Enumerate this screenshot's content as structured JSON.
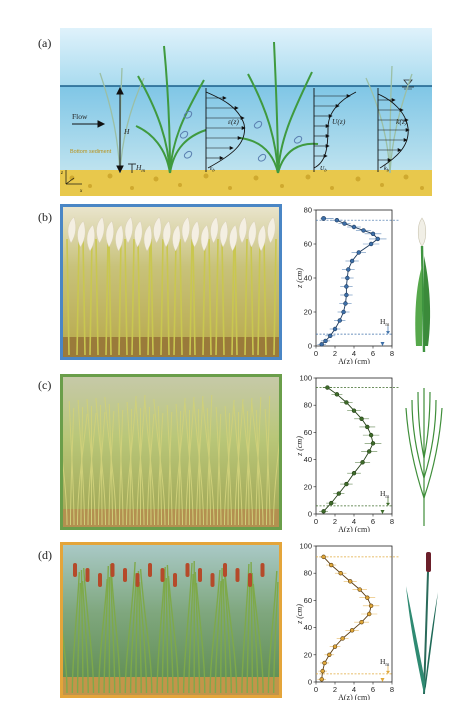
{
  "panel_labels": [
    "(a)",
    "(b)",
    "(c)",
    "(d)"
  ],
  "schematic": {
    "flow_label": "Flow",
    "depth_label": "H",
    "canopy_label": "H",
    "canopy_sub": "m",
    "bottom_text": "Bottom sediment",
    "axes": [
      "z",
      "x"
    ],
    "labels": [
      "ε(z)",
      "U(z)",
      "k(z)"
    ],
    "near_bed": [
      "ε",
      "U",
      "k"
    ],
    "near_bed_sub": [
      "b",
      "b",
      "b"
    ]
  },
  "colors": {
    "b": "#3d6fa8",
    "c": "#3e6b2a",
    "d": "#e0a83a",
    "dark_b": "#1d3a5e",
    "dark_c": "#244016",
    "dark_d": "#5a3b0e"
  },
  "chart_data": [
    {
      "type": "scatter",
      "panel": "b",
      "xlabel": "A(z) (cm)",
      "ylabel": "z (cm)",
      "xlim": [
        0,
        8
      ],
      "ylim": [
        0,
        80
      ],
      "xticks": [
        "0",
        "2",
        "4",
        "6",
        "8"
      ],
      "yticks": [
        "0",
        "20",
        "40",
        "60",
        "80"
      ],
      "hm_label": "H",
      "hm_sub": "m",
      "hm": 7,
      "top_point": {
        "x": 0.8,
        "y": 75
      },
      "profile": [
        [
          0.6,
          1
        ],
        [
          1.0,
          3
        ],
        [
          1.5,
          6
        ],
        [
          2.0,
          10
        ],
        [
          2.5,
          15
        ],
        [
          2.9,
          20
        ],
        [
          3.1,
          25
        ],
        [
          3.2,
          30
        ],
        [
          3.2,
          35
        ],
        [
          3.3,
          40
        ],
        [
          3.4,
          45
        ],
        [
          3.8,
          50
        ],
        [
          4.5,
          55
        ],
        [
          5.8,
          60
        ],
        [
          6.5,
          63
        ],
        [
          6.0,
          66
        ],
        [
          5.0,
          68
        ],
        [
          4.0,
          70
        ],
        [
          3.0,
          72
        ],
        [
          2.2,
          74
        ]
      ]
    },
    {
      "type": "scatter",
      "panel": "c",
      "xlabel": "A(z) (cm)",
      "ylabel": "z (cm)",
      "xlim": [
        0,
        8
      ],
      "ylim": [
        0,
        100
      ],
      "xticks": [
        "0",
        "2",
        "4",
        "6",
        "8"
      ],
      "yticks": [
        "0",
        "20",
        "40",
        "60",
        "80",
        "100"
      ],
      "hm_label": "H",
      "hm_sub": "m",
      "hm": 6,
      "profile": [
        [
          0.8,
          2
        ],
        [
          1.6,
          8
        ],
        [
          2.4,
          15
        ],
        [
          3.2,
          22
        ],
        [
          4.0,
          30
        ],
        [
          4.9,
          38
        ],
        [
          5.6,
          46
        ],
        [
          6.0,
          52
        ],
        [
          5.8,
          58
        ],
        [
          5.4,
          64
        ],
        [
          4.8,
          70
        ],
        [
          4.0,
          76
        ],
        [
          3.2,
          82
        ],
        [
          2.2,
          88
        ],
        [
          1.2,
          93
        ]
      ]
    },
    {
      "type": "scatter",
      "panel": "d",
      "xlabel": "A(z) (cm)",
      "ylabel": "z (cm)",
      "xlim": [
        0,
        8
      ],
      "ylim": [
        0,
        100
      ],
      "xticks": [
        "0",
        "2",
        "4",
        "6",
        "8"
      ],
      "yticks": [
        "0",
        "20",
        "40",
        "60",
        "80",
        "100"
      ],
      "hm_label": "H",
      "hm_sub": "m",
      "hm": 6,
      "profile": [
        [
          0.6,
          2
        ],
        [
          0.7,
          8
        ],
        [
          0.9,
          14
        ],
        [
          1.4,
          20
        ],
        [
          2.0,
          26
        ],
        [
          2.8,
          32
        ],
        [
          3.8,
          38
        ],
        [
          4.8,
          44
        ],
        [
          5.6,
          50
        ],
        [
          5.8,
          56
        ],
        [
          5.4,
          62
        ],
        [
          4.6,
          68
        ],
        [
          3.6,
          74
        ],
        [
          2.6,
          80
        ],
        [
          1.6,
          86
        ],
        [
          0.8,
          92
        ]
      ]
    }
  ]
}
